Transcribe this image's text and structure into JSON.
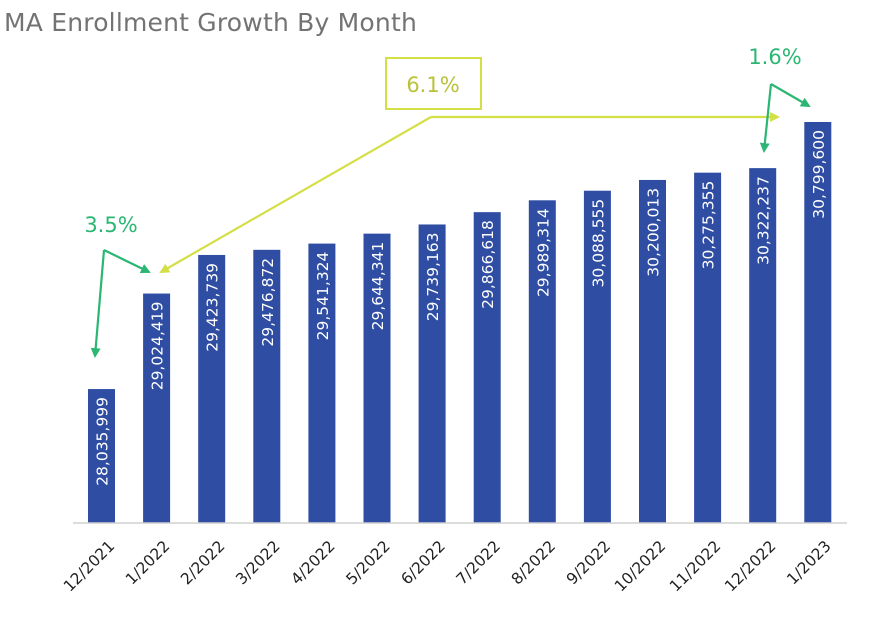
{
  "chart_data": {
    "type": "bar",
    "title": "MA Enrollment Growth By Month",
    "xlabel": "",
    "ylabel": "",
    "categories": [
      "12/2021",
      "1/2022",
      "2/2022",
      "3/2022",
      "4/2022",
      "5/2022",
      "6/2022",
      "7/2022",
      "8/2022",
      "9/2022",
      "10/2022",
      "11/2022",
      "12/2022",
      "1/2023"
    ],
    "values": [
      28035999,
      29024419,
      29423739,
      29476872,
      29541324,
      29644341,
      29739163,
      29866618,
      29989314,
      30088555,
      30200013,
      30275355,
      30322237,
      30799600
    ],
    "data_labels": [
      "28,035,999",
      "29,024,419",
      "29,423,739",
      "29,476,872",
      "29,541,324",
      "29,644,341",
      "29,739,163",
      "29,866,618",
      "29,989,314",
      "30,088,555",
      "30,200,013",
      "30,275,355",
      "30,322,237",
      "30,799,600"
    ],
    "ylim": [
      26650000,
      31200000
    ],
    "grid": false,
    "bar_color": "#2E4DA3",
    "annotations": [
      {
        "text": "3.5%",
        "from": "12/2021",
        "to": "1/2022",
        "color": "#2BB673"
      },
      {
        "text": "6.1%",
        "from": "1/2022",
        "to": "12/2022",
        "color": "#D4DE45",
        "boxed": true
      },
      {
        "text": "1.6%",
        "from": "12/2022",
        "to": "1/2023",
        "color": "#2BB673"
      }
    ]
  }
}
